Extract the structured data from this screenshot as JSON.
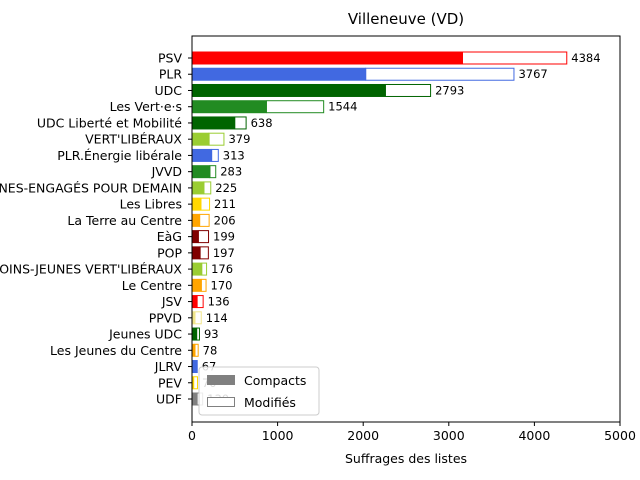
{
  "chart_data": {
    "type": "bar",
    "orientation": "horizontal",
    "title": "Villeneuve (VD)",
    "xlabel": "Suffrages des listes",
    "ylabel": "",
    "xlim": [
      0,
      5000
    ],
    "xticks": [
      0,
      1000,
      2000,
      3000,
      4000,
      5000
    ],
    "legend": {
      "placement": "lower-left",
      "entries": [
        {
          "label": "Compacts",
          "style": "filled",
          "color": "#808080"
        },
        {
          "label": "Modifiés",
          "style": "outline",
          "color": "#808080"
        }
      ]
    },
    "categories": [
      "PSV",
      "PLR",
      "UDC",
      "Les Vert·e·s",
      "UDC Liberté et Mobilité",
      "VERT'LIBÉRAUX",
      "PLR.Énergie libérale",
      "JVVD",
      "JEUNES-ET-MOINS-JEUNES-ENGAGÉS POUR DEMAIN",
      "Les Libres",
      "La Terre au Centre",
      "EàG",
      "POP",
      "JEUNES-ET-MOINS-JEUNES VERT'LIBÉRAUX",
      "Le Centre",
      "JSV",
      "PPVD",
      "Jeunes UDC",
      "Les Jeunes du Centre",
      "JLRV",
      "PEV",
      "UDF"
    ],
    "colors": [
      "#ff0000",
      "#4169e1",
      "#006400",
      "#228b22",
      "#006400",
      "#9acd32",
      "#4169e1",
      "#228b22",
      "#9acd32",
      "#ffd700",
      "#ffa500",
      "#800000",
      "#800000",
      "#9acd32",
      "#ffa500",
      "#ff0000",
      "#f0e68c",
      "#006400",
      "#ffa500",
      "#4169e1",
      "#ffd700",
      "#808080"
    ],
    "series": [
      {
        "name": "Compacts",
        "values": [
          3160,
          2030,
          2260,
          870,
          500,
          200,
          230,
          210,
          140,
          105,
          90,
          75,
          95,
          115,
          110,
          60,
          35,
          55,
          35,
          55,
          20,
          60
        ]
      },
      {
        "name": "Modifiés",
        "values": [
          1224,
          1737,
          533,
          674,
          138,
          179,
          83,
          73,
          85,
          106,
          116,
          124,
          102,
          61,
          60,
          76,
          79,
          38,
          43,
          12,
          50,
          70
        ]
      }
    ],
    "totals": [
      4384,
      3767,
      2793,
      1544,
      638,
      379,
      313,
      283,
      225,
      211,
      206,
      199,
      197,
      176,
      170,
      136,
      114,
      93,
      78,
      67,
      70,
      130
    ]
  }
}
